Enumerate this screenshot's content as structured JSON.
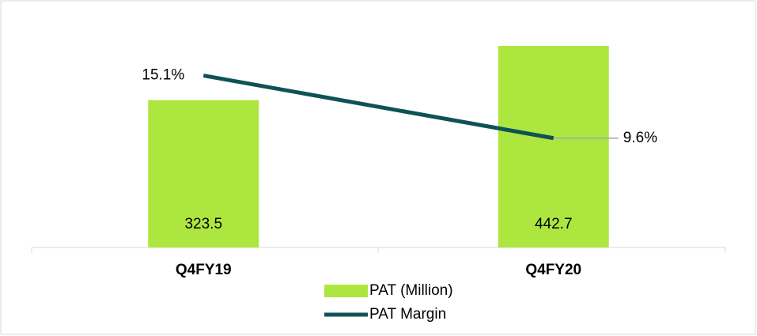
{
  "chart_data": {
    "type": "bar-line",
    "categories": [
      "Q4FY19",
      "Q4FY20"
    ],
    "series": [
      {
        "name": "PAT (Million)",
        "type": "bar",
        "color": "#aee640",
        "values": [
          323.5,
          442.7
        ]
      },
      {
        "name": "PAT Margin",
        "type": "line",
        "axis": "y2",
        "color": "#0e5257",
        "values": [
          15.1,
          9.6
        ],
        "value_labels": [
          "15.1%",
          "9.6%"
        ]
      }
    ],
    "ylim": [
      0,
      500
    ],
    "y2lim": [
      0,
      20
    ],
    "legend": "bottom"
  }
}
